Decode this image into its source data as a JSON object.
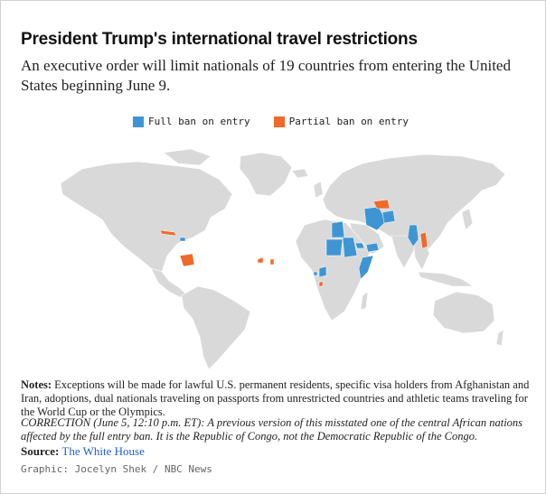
{
  "header": {
    "title": "President Trump's international travel restrictions",
    "subtitle": "An executive order will limit nationals of 19 countries from entering the United States beginning June 9."
  },
  "legend": {
    "full_label": "Full ban on entry",
    "partial_label": "Partial ban on entry",
    "full_color": "#3f95d3",
    "partial_color": "#f0692b",
    "land_color": "#d9d9d9"
  },
  "footer": {
    "notes_label": "Notes:",
    "notes_text": "Exceptions will be made for lawful U.S. permanent residents, specific visa holders from Afghanistan and Iran, adoptions, dual nationals traveling on passports from unrestricted countries and athletic teams traveling for the World Cup or the Olympics.",
    "correction": "CORRECTION (June 5, 12:10 p.m. ET): A previous version of this misstated one of the central African nations affected by the full entry ban. It is the Republic of Congo, not the Democratic Republic of the Congo.",
    "source_label": "Source:",
    "source_link": "The White House",
    "credit": "Graphic: Jocelyn Shek / NBC News"
  }
}
